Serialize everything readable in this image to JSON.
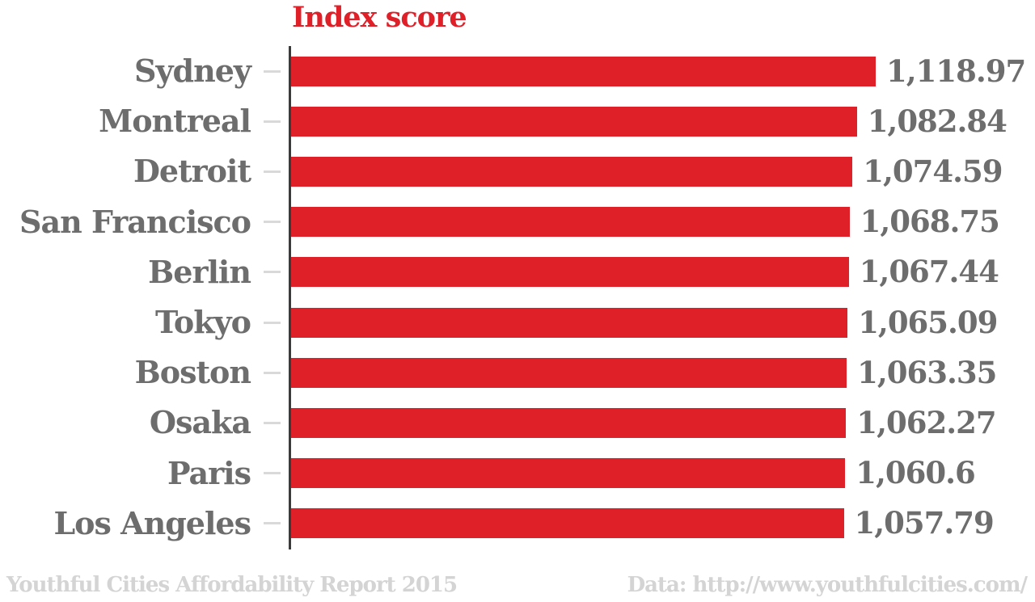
{
  "chart_data": {
    "type": "bar",
    "orientation": "horizontal",
    "title": "Index score",
    "categories": [
      "Sydney",
      "Montreal",
      "Detroit",
      "San Francisco",
      "Berlin",
      "Tokyo",
      "Boston",
      "Osaka",
      "Paris",
      "Los Angeles"
    ],
    "values": [
      1118.97,
      1082.84,
      1074.59,
      1068.75,
      1067.44,
      1065.09,
      1063.35,
      1062.27,
      1060.6,
      1057.79
    ],
    "value_labels": [
      "1,118.97",
      "1,082.84",
      "1,074.59",
      "1,068.75",
      "1,067.44",
      "1,065.09",
      "1,063.35",
      "1,062.27",
      "1,060.6",
      "1,057.79"
    ],
    "xlabel": "",
    "ylabel": "",
    "xlim": [
      0,
      1118.97
    ],
    "grid": false,
    "legend": false
  },
  "footer": {
    "left": "Youthful Cities Affordability Report 2015",
    "right": "Data: http://www.youthfulcities.com/"
  },
  "colors": {
    "bar": "#e02028",
    "title": "#e02028",
    "label": "#6d6d6d",
    "value": "#6d6d6d",
    "tick": "#d9d9d9",
    "axis": "#3b3b3b",
    "footer": "#d4d4d4"
  }
}
